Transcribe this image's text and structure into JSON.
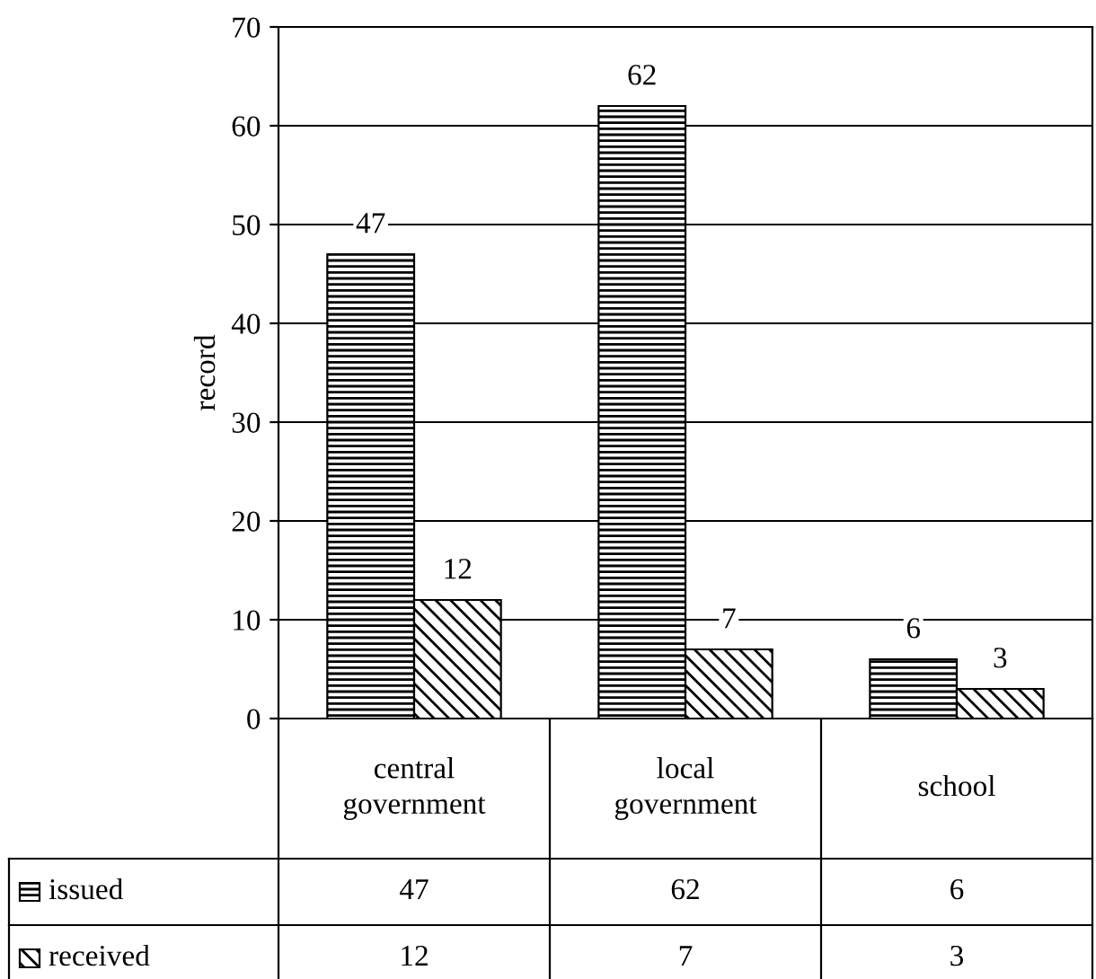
{
  "chart_data": {
    "type": "bar",
    "ylabel": "record",
    "categories": [
      "central government",
      "local government",
      "school"
    ],
    "series": [
      {
        "name": "issued",
        "color": "#000000",
        "values": [
          47,
          62,
          6
        ],
        "value_labels": [
          "47",
          "62",
          "6"
        ]
      },
      {
        "name": "received",
        "color": "#000000",
        "values": [
          12,
          7,
          3
        ],
        "value_labels": [
          "12",
          "7",
          "3"
        ]
      }
    ],
    "ylim": [
      0,
      70
    ],
    "yticks": [
      0,
      10,
      20,
      30,
      40,
      50,
      60,
      70
    ],
    "grid": "y",
    "legend": "bottom",
    "annotations": [
      "47",
      "62",
      "6",
      "12",
      "7",
      "3"
    ]
  }
}
